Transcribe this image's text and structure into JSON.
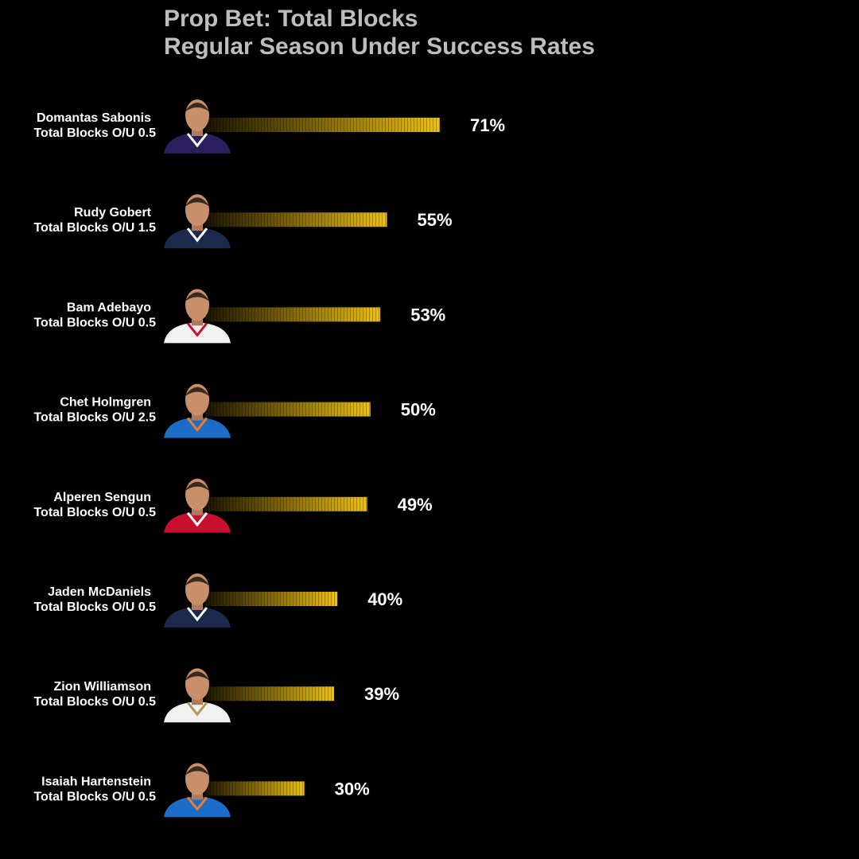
{
  "chart_data": {
    "type": "bar",
    "orientation": "horizontal",
    "title": "Prop Bet: Total Blocks",
    "subtitle": "Regular Season Under Success Rates",
    "value_suffix": "%",
    "xlim": [
      0,
      100
    ],
    "grid": false,
    "legend": "none",
    "categories": [
      {
        "name": "Domantas Sabonis",
        "line": "Total Blocks O/U 0.5",
        "jersey": "#2a1f5c",
        "trim": "#ffffff"
      },
      {
        "name": "Rudy Gobert",
        "line": "Total Blocks O/U 1.5",
        "jersey": "#1b2a4a",
        "trim": "#ffffff"
      },
      {
        "name": "Bam Adebayo",
        "line": "Total Blocks O/U 0.5",
        "jersey": "#f2f2f2",
        "trim": "#c8102e"
      },
      {
        "name": "Chet Holmgren",
        "line": "Total Blocks O/U 2.5",
        "jersey": "#1d6cc7",
        "trim": "#f07b2a"
      },
      {
        "name": "Alperen Sengun",
        "line": "Total Blocks O/U 0.5",
        "jersey": "#c8102e",
        "trim": "#ffffff"
      },
      {
        "name": "Jaden McDaniels",
        "line": "Total Blocks O/U 0.5",
        "jersey": "#1b2a4a",
        "trim": "#ffffff"
      },
      {
        "name": "Zion Williamson",
        "line": "Total Blocks O/U 0.5",
        "jersey": "#f2f2f2",
        "trim": "#b4975a"
      },
      {
        "name": "Isaiah Hartenstein",
        "line": "Total Blocks O/U 0.5",
        "jersey": "#1d6cc7",
        "trim": "#f07b2a"
      }
    ],
    "values": [
      71,
      55,
      53,
      50,
      49,
      40,
      39,
      30
    ],
    "bar_gradient": {
      "start": "#1a1400",
      "end": "#f2c200"
    }
  }
}
